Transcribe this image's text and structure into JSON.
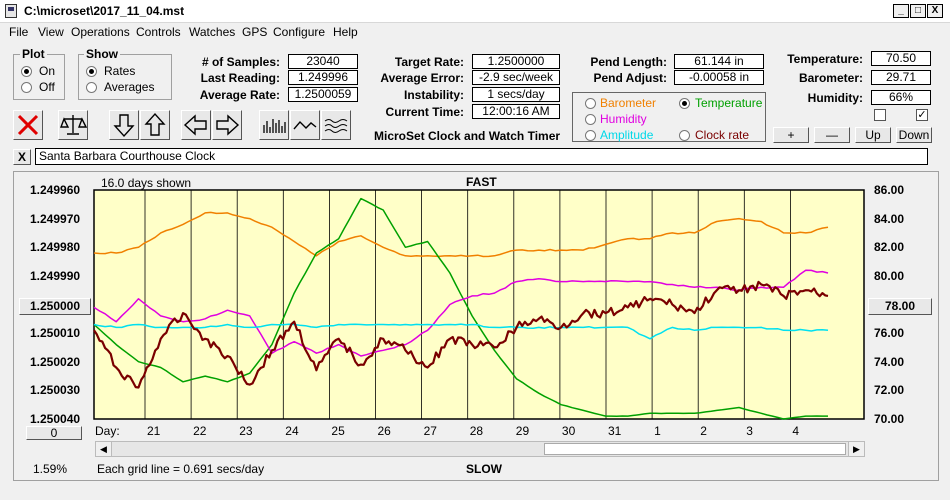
{
  "window": {
    "title": "C:\\microset\\2017_11_04.mst",
    "minimize": "_",
    "maximize": "□",
    "close": "X"
  },
  "menu": [
    "File",
    "View",
    "Operations",
    "Controls",
    "Watches",
    "GPS",
    "Configure",
    "Help"
  ],
  "plot_group": {
    "title": "Plot",
    "on_label": "On",
    "off_label": "Off",
    "selected": "On"
  },
  "show_group": {
    "title": "Show",
    "rates_label": "Rates",
    "averages_label": "Averages",
    "selected": "Rates"
  },
  "stats": {
    "samples_label": "# of Samples:",
    "samples": "23040",
    "last_reading_label": "Last Reading:",
    "last_reading": "1.249996",
    "average_rate_label": "Average Rate:",
    "average_rate": "1.2500059"
  },
  "targets": {
    "target_rate_label": "Target Rate:",
    "target_rate": "1.2500000",
    "average_error_label": "Average Error:",
    "average_error": "-2.9 sec/week",
    "instability_label": "Instability:",
    "instability": "1 secs/day",
    "current_time_label": "Current Time:",
    "current_time": "12:00:16 AM"
  },
  "app_caption": "MicroSet Clock and Watch Timer",
  "pendulum": {
    "length_label": "Pend Length:",
    "length": "61.144 in",
    "adjust_label": "Pend Adjust:",
    "adjust": "-0.00058 in"
  },
  "sensor_select": {
    "barometer": "Barometer",
    "temperature": "Temperature",
    "humidity": "Humidity",
    "amplitude": "Amplitude",
    "clock_rate": "Clock rate",
    "selected": "Temperature"
  },
  "environment": {
    "temperature_label": "Temperature:",
    "temperature": "70.50",
    "barometer_label": "Barometer:",
    "barometer": "29.71",
    "humidity_label": "Humidity:",
    "humidity": "66%",
    "checkbox_left": false,
    "checkbox_right": true,
    "plus": "+",
    "minus": "—",
    "up": "Up",
    "down": "Down"
  },
  "clock_name": {
    "close": "X",
    "value": "Santa Barbara Courthouse Clock"
  },
  "colors": {
    "plot_bg": "#ffffc8",
    "rate": "#7a0000",
    "temperature": "#00a000",
    "barometer": "#f08000",
    "humidity": "#e000e0",
    "amplitude": "#00e0f0"
  },
  "chart_data": {
    "type": "line",
    "top_label": "FAST",
    "bottom_label": "SLOW",
    "days_shown": "16.0 days shown",
    "grid_note": "Each grid line = 0.691 secs/day",
    "day_label": "Day:",
    "x_ticks": [
      "21",
      "22",
      "23",
      "24",
      "25",
      "26",
      "27",
      "28",
      "29",
      "30",
      "31",
      "1",
      "2",
      "3",
      "4"
    ],
    "y_left_ticks": [
      "1.249960",
      "1.249970",
      "1.249980",
      "1.249990",
      "1.250000",
      "1.250010",
      "1.250020",
      "1.250030",
      "1.250040"
    ],
    "y_left_range": [
      1.24996,
      1.25004
    ],
    "y_right_ticks": [
      "86.00",
      "84.00",
      "82.00",
      "80.00",
      "78.00",
      "76.00",
      "74.00",
      "72.00",
      "70.00"
    ],
    "y_right_range": [
      70,
      86
    ],
    "left_scroll_value": "1.250000",
    "right_scroll_value": "78.00",
    "bottom_button": "0",
    "percent": "1.59%",
    "series": [
      {
        "key": "barometer",
        "color": "#f08000",
        "values": [
          1.249982,
          1.249982,
          1.24998,
          1.249975,
          1.249972,
          1.249968,
          1.249968,
          1.24997,
          1.249973,
          1.249978,
          1.249983,
          1.249978,
          1.249976,
          1.24998,
          1.249983,
          1.249983,
          1.249983,
          1.249983,
          1.249983,
          1.249981,
          1.249981,
          1.249981,
          1.249981,
          1.249979,
          1.249977,
          1.249977,
          1.249975,
          1.249975,
          1.249971,
          1.24997,
          1.249971,
          1.249975,
          1.249975,
          1.249973
        ]
      },
      {
        "key": "temperature",
        "color": "#00a000",
        "values": [
          1.250007,
          1.250014,
          1.25002,
          1.250022,
          1.250027,
          1.250025,
          1.250027,
          1.250024,
          1.250014,
          1.249996,
          1.249982,
          1.249977,
          1.249963,
          1.249967,
          1.24998,
          1.249978,
          1.249989,
          1.250004,
          1.250016,
          1.250026,
          1.250031,
          1.250035,
          1.250037,
          1.250039,
          1.250039,
          1.250038,
          1.250038,
          1.250038,
          1.250037,
          1.250036,
          1.250038,
          1.25004,
          1.250039,
          1.250039
        ]
      },
      {
        "key": "humidity",
        "color": "#e000e0",
        "values": [
          1.250001,
          1.250006,
          1.249998,
          1.250004,
          1.250006,
          1.250005,
          1.250002,
          1.250004,
          1.250017,
          1.250013,
          1.250017,
          1.250014,
          1.250018,
          1.250016,
          1.250014,
          1.250009,
          1.25,
          1.249997,
          1.249996,
          1.249992,
          1.249991,
          1.249992,
          1.249992,
          1.249992,
          1.249992,
          1.249992,
          1.249993,
          1.249994,
          1.249994,
          1.249995,
          1.249994,
          1.249994,
          1.249988,
          1.249989
        ]
      },
      {
        "key": "amplitude",
        "color": "#00e0f0",
        "values": [
          1.250007,
          1.250008,
          1.250007,
          1.250008,
          1.250008,
          1.250008,
          1.250007,
          1.250008,
          1.250007,
          1.250007,
          1.250008,
          1.250007,
          1.250007,
          1.250007,
          1.250007,
          1.250007,
          1.250007,
          1.250007,
          1.250008,
          1.250008,
          1.250008,
          1.250008,
          1.250008,
          1.250008,
          1.250008,
          1.250012,
          1.250008,
          1.250009,
          1.250008,
          1.250008,
          1.250008,
          1.250009,
          1.250009,
          1.250009
        ]
      },
      {
        "key": "rate",
        "color": "#7a0000",
        "values": [
          1.250009,
          1.250022,
          1.250029,
          1.250012,
          1.250003,
          1.250012,
          1.250018,
          1.250028,
          1.250016,
          1.250006,
          1.250023,
          1.250012,
          1.250021,
          1.250012,
          1.250016,
          1.250022,
          1.250012,
          1.250014,
          1.250015,
          1.250008,
          1.250005,
          1.250008,
          1.250003,
          1.250003,
          1.250001,
          1.249998,
          1.25,
          1.250003,
          1.249995,
          1.249995,
          1.249993,
          1.249997,
          1.249995,
          1.249997
        ]
      }
    ]
  }
}
